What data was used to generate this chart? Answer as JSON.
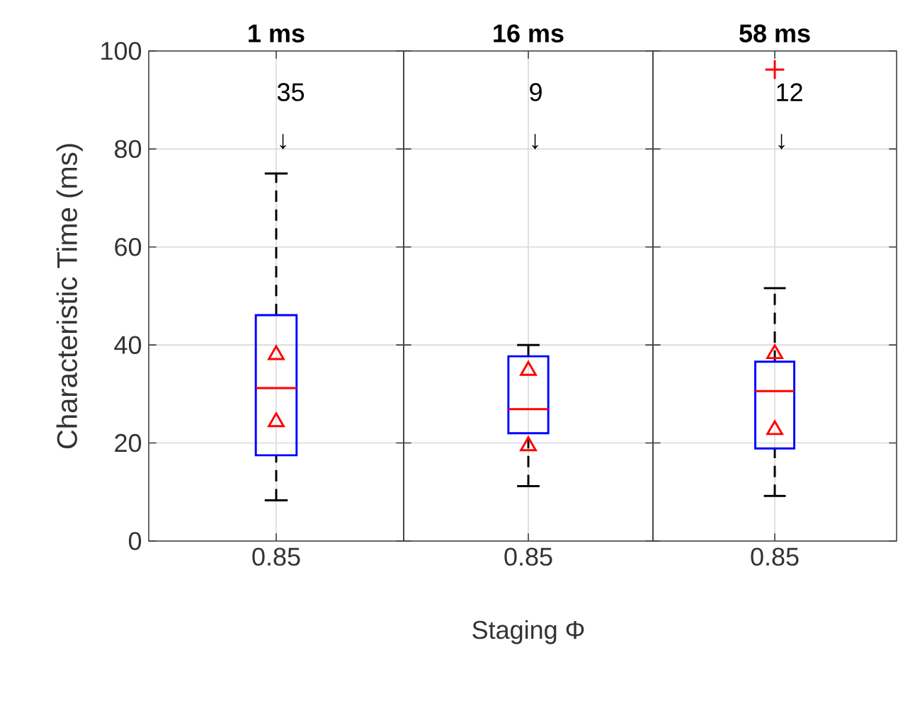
{
  "chart_data": [
    {
      "type": "box",
      "title": "**1 ms**",
      "ylabel": "Characteristic Time (ms)",
      "categories": [
        "0.85"
      ],
      "ylim": [
        0,
        100
      ],
      "yticks": [
        0,
        20,
        40,
        60,
        80,
        100
      ],
      "grid": true,
      "series": [
        {
          "color": "#0000ff",
          "boxes": [
            {
              "low": 8.3,
              "q1": 17.5,
              "median": 31.2,
              "q3": 46.1,
              "high": 75
            }
          ]
        },
        {
          "type": "scatter",
          "marker": "triangle",
          "color": "#ff0000",
          "x": [
            "0.85",
            "0.85"
          ],
          "values": [
            24.3,
            38
          ]
        }
      ],
      "annotations": [
        "35",
        "↓"
      ]
    },
    {
      "type": "box",
      "title": "**16 ms**",
      "xlabel": "Staging Φ",
      "categories": [
        "0.85"
      ],
      "ylim": [
        0,
        100
      ],
      "yticks": [
        0,
        20,
        40,
        60,
        80,
        100
      ],
      "grid": true,
      "tick_labels": "x",
      "series": [
        {
          "color": "#0000ff",
          "boxes": [
            {
              "low": 11.2,
              "q1": 22,
              "median": 26.9,
              "q3": 37.7,
              "high": 40
            }
          ]
        },
        {
          "type": "scatter",
          "marker": "triangle",
          "color": "#ff0000",
          "x": [
            "0.85",
            "0.85"
          ],
          "values": [
            19.4,
            34.8
          ]
        }
      ],
      "annotations": [
        "9",
        "↓"
      ]
    },
    {
      "type": "box",
      "title": "**58 ms**",
      "categories": [
        "0.85"
      ],
      "ylim": [
        0,
        100
      ],
      "yticks": [
        0,
        20,
        40,
        60,
        80,
        100
      ],
      "grid": true,
      "tick_labels": "x",
      "series": [
        {
          "color": "#0000ff",
          "boxes": [
            {
              "low": 9.2,
              "q1": 18.9,
              "median": 30.6,
              "q3": 36.6,
              "high": 51.6,
              "outliers": [
                96.2
              ]
            }
          ]
        },
        {
          "type": "scatter",
          "marker": "triangle",
          "color": "#ff0000",
          "x": [
            "0.85",
            "0.85"
          ],
          "values": [
            22.7,
            38.2
          ]
        }
      ],
      "annotations": [
        "12",
        "↓"
      ]
    }
  ]
}
